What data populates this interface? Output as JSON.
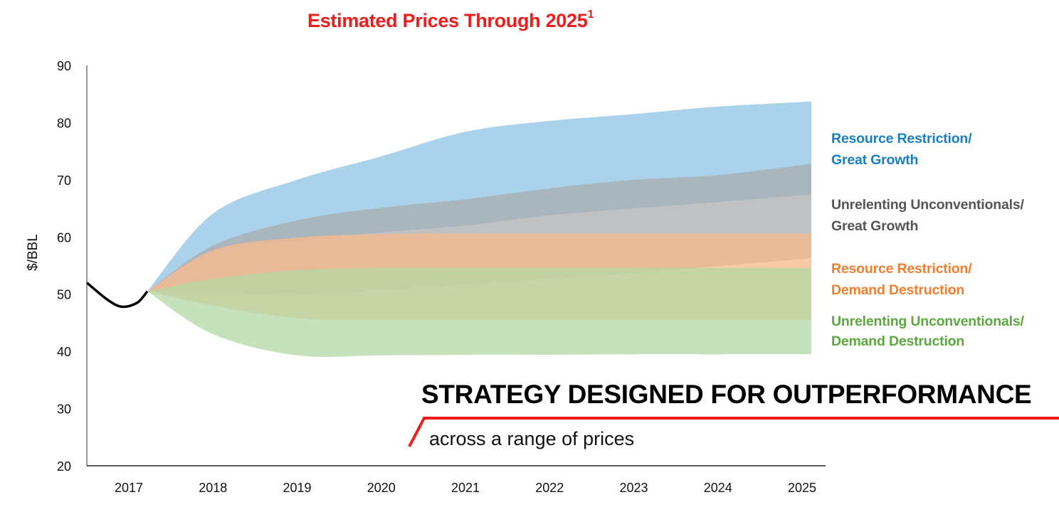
{
  "chart_data": {
    "type": "area",
    "title": "Estimated Prices Through 2025",
    "title_footnote": "1",
    "xlabel": "",
    "ylabel": "$/BBL",
    "ylim": [
      20,
      90
    ],
    "yticks": [
      20,
      30,
      40,
      50,
      60,
      70,
      80,
      90
    ],
    "categories": [
      "2017",
      "2018",
      "2019",
      "2020",
      "2021",
      "2022",
      "2023",
      "2024",
      "2025"
    ],
    "grid": false,
    "legend_placement": "right",
    "historical": {
      "name": "Historical price",
      "color": "#000000",
      "points": [
        [
          2016.5,
          52.0
        ],
        [
          2016.75,
          49.0
        ],
        [
          2016.92,
          47.8
        ],
        [
          2017.1,
          48.5
        ],
        [
          2017.22,
          50.5
        ]
      ]
    },
    "fan_start": [
      2017.22,
      50.5
    ],
    "series": [
      {
        "name": "Resource Restriction/ Great Growth",
        "color": "#8dc3e3",
        "label_color": "#1a7fc1",
        "x": [
          2018,
          2019,
          2020,
          2021,
          2022,
          2023,
          2024,
          2025
        ],
        "upper": [
          64.1,
          70.0,
          74.1,
          78.4,
          80.3,
          81.5,
          82.8,
          83.7
        ],
        "lower": [
          57.3,
          59.4,
          60.8,
          62.0,
          63.8,
          65.0,
          66.1,
          67.4
        ]
      },
      {
        "name": "Unrelenting Unconventionals/ Great Growth",
        "color": "#a9acaf",
        "label_color": "#555555",
        "x": [
          2018,
          2019,
          2020,
          2021,
          2022,
          2023,
          2024,
          2025
        ],
        "upper": [
          58.5,
          62.9,
          65.1,
          66.6,
          68.5,
          70.0,
          70.8,
          72.8
        ],
        "lower": [
          50.2,
          49.9,
          50.7,
          51.7,
          52.7,
          53.7,
          54.9,
          56.3
        ]
      },
      {
        "name": "Resource Restriction/ Demand Destruction",
        "color": "#f8b88b",
        "label_color": "#f07e2e",
        "x": [
          2018,
          2019,
          2020,
          2021,
          2022,
          2023,
          2024,
          2025
        ],
        "upper": [
          57.7,
          59.9,
          60.5,
          60.6,
          60.6,
          60.6,
          60.6,
          60.6
        ],
        "lower": [
          48.0,
          45.8,
          45.5,
          45.5,
          45.5,
          45.5,
          45.5,
          45.5
        ]
      },
      {
        "name": "Unrelenting Unconventionals/ Demand Destruction",
        "color": "#b3d8a5",
        "label_color": "#5aa83e",
        "x": [
          2018,
          2019,
          2020,
          2021,
          2022,
          2023,
          2024,
          2025
        ],
        "upper": [
          52.7,
          54.2,
          54.6,
          54.6,
          54.6,
          54.6,
          54.6,
          54.6
        ],
        "lower": [
          43.0,
          39.3,
          39.3,
          39.4,
          39.4,
          39.5,
          39.5,
          39.5
        ]
      }
    ]
  },
  "legend": [
    {
      "line1": "Resource Restriction/",
      "line2": "Great Growth",
      "color": "#1a7fc1"
    },
    {
      "line1": "Unrelenting Unconventionals/",
      "line2": "Great Growth",
      "color": "#555555"
    },
    {
      "line1": "Resource Restriction/",
      "line2": "Demand Destruction",
      "color": "#f07e2e"
    },
    {
      "line1": "Unrelenting Unconventionals/",
      "line2": "Demand Destruction",
      "color": "#5aa83e"
    }
  ],
  "callout": {
    "headline": "STRATEGY DESIGNED FOR OUTPERFORMANCE",
    "subline": "across a range of prices",
    "accent_color": "#ee1c1c"
  },
  "title_color": "#ee1c1c"
}
